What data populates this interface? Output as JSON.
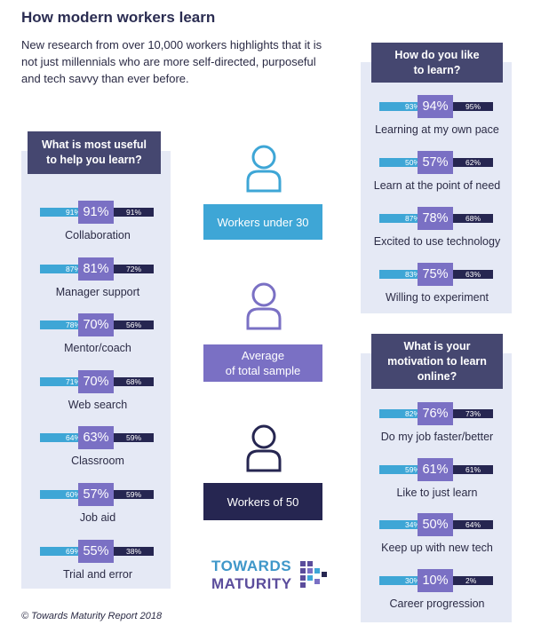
{
  "title": "How modern workers learn",
  "subtitle": "New research from over 10,000 workers highlights that it is not just millennials who are more self-directed, purposeful and tech savvy than ever before.",
  "footer": "© Towards Maturity Report 2018",
  "colors": {
    "under30": "#3ea6d6",
    "average": "#7a70c4",
    "over50": "#262651",
    "panel_bg": "#e5e9f5",
    "header_bg": "#454770"
  },
  "groups": {
    "under30": "Workers under 30",
    "average": "Average\nof total sample",
    "over50": "Workers of 50"
  },
  "icons": {
    "person": "person-icon",
    "logo": "logo-squares-icon"
  },
  "logo": {
    "line1": "TOWARDS",
    "line2": "MATURITY"
  },
  "left_panel": {
    "heading": "What is most useful\nto help you learn?",
    "rows": [
      {
        "label": "Collaboration",
        "under30": "91%",
        "average": "91%",
        "over50": "91%"
      },
      {
        "label": "Manager support",
        "under30": "87%",
        "average": "81%",
        "over50": "72%"
      },
      {
        "label": "Mentor/coach",
        "under30": "78%",
        "average": "70%",
        "over50": "56%"
      },
      {
        "label": "Web search",
        "under30": "71%",
        "average": "70%",
        "over50": "68%"
      },
      {
        "label": "Classroom",
        "under30": "64%",
        "average": "63%",
        "over50": "59%"
      },
      {
        "label": "Job aid",
        "under30": "60%",
        "average": "57%",
        "over50": "59%"
      },
      {
        "label": "Trial and error",
        "under30": "69%",
        "average": "55%",
        "over50": "38%"
      }
    ]
  },
  "right_top": {
    "heading": "How do you like\nto learn?",
    "rows": [
      {
        "label": "Learning at my own pace",
        "under30": "93%",
        "average": "94%",
        "over50": "95%"
      },
      {
        "label": "Learn at the point of need",
        "under30": "50%",
        "average": "57%",
        "over50": "62%"
      },
      {
        "label": "Excited to use technology",
        "under30": "87%",
        "average": "78%",
        "over50": "68%"
      },
      {
        "label": "Willing to experiment",
        "under30": "83%",
        "average": "75%",
        "over50": "63%"
      }
    ]
  },
  "right_bottom": {
    "heading": "What is your\nmotivation to learn\nonline?",
    "rows": [
      {
        "label": "Do my job faster/better",
        "under30": "82%",
        "average": "76%",
        "over50": "73%"
      },
      {
        "label": "Like to just learn",
        "under30": "59%",
        "average": "61%",
        "over50": "61%"
      },
      {
        "label": "Keep up with new tech",
        "under30": "34%",
        "average": "50%",
        "over50": "64%"
      },
      {
        "label": "Career progression",
        "under30": "30%",
        "average": "10%",
        "over50": "2%"
      }
    ]
  }
}
